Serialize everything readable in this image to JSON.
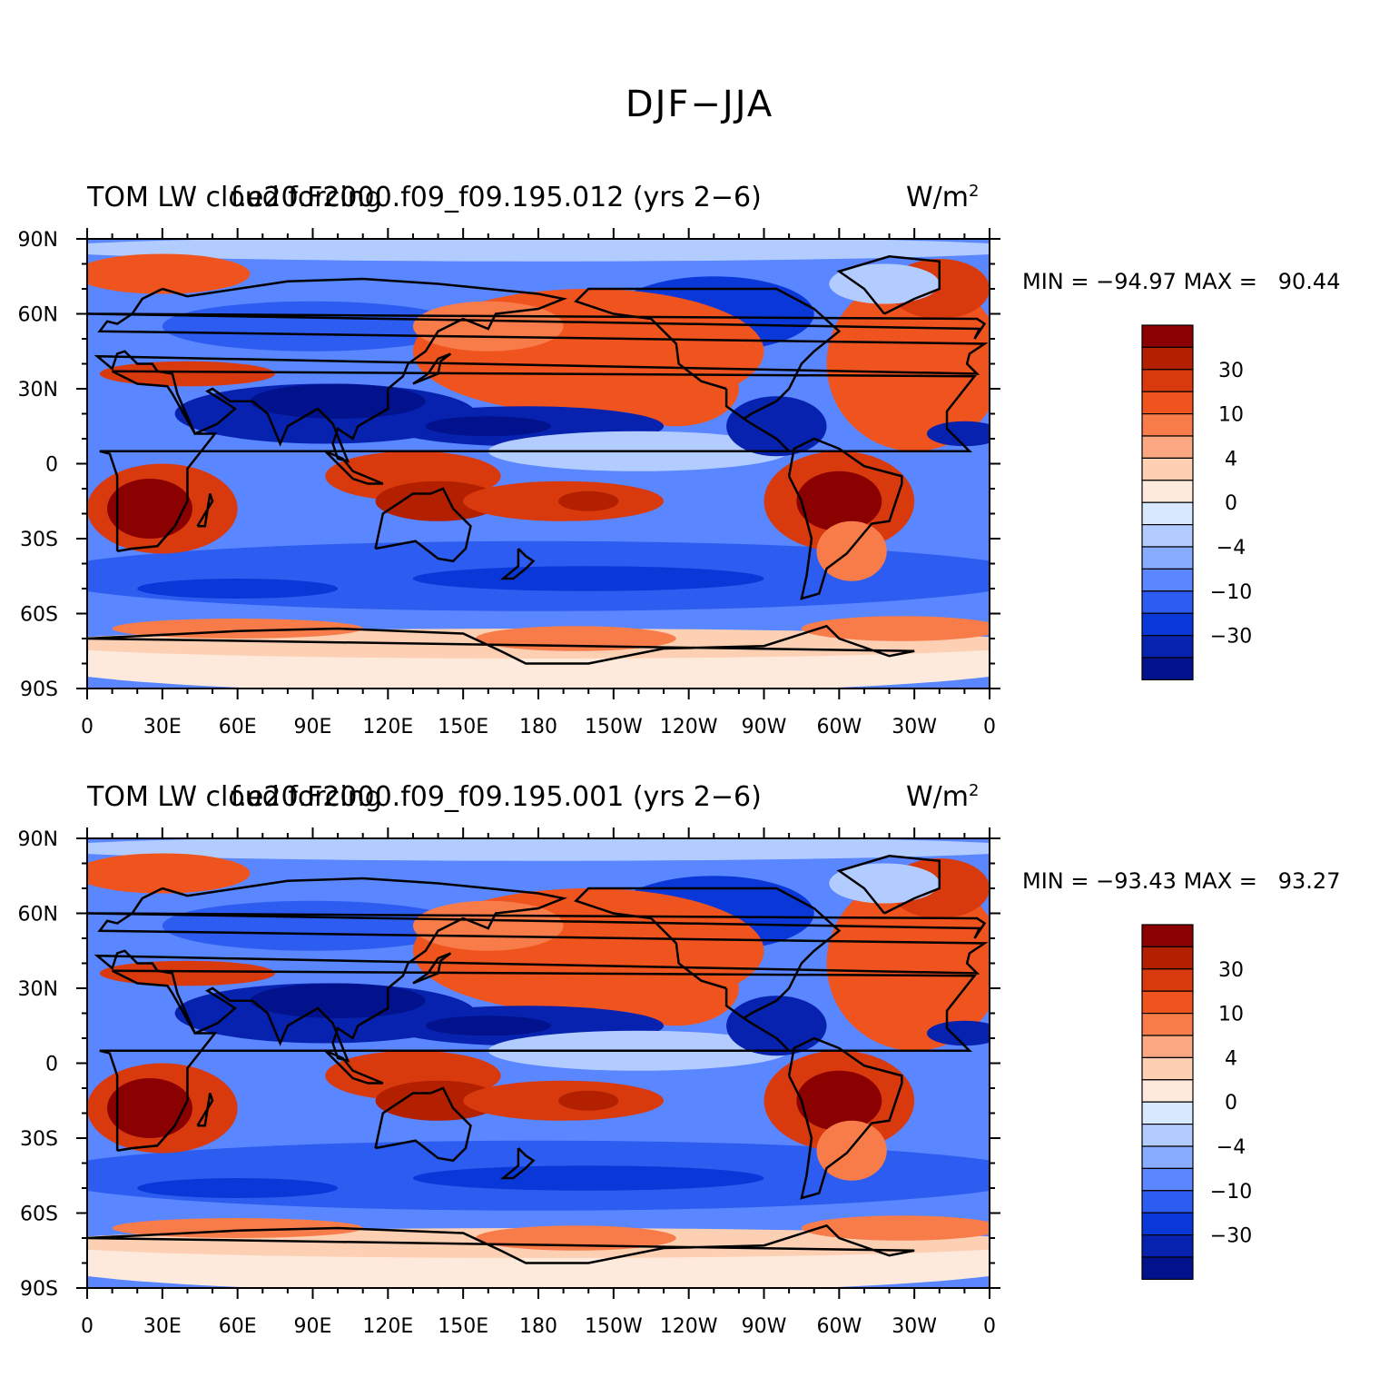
{
  "figure": {
    "title": "DJF−JJA"
  },
  "panels": [
    {
      "left_title": "TOM LW cloud forcing",
      "center_title": "f.e20.F2000.f09_f09.195.012 (yrs 2−6)",
      "units": "W/m",
      "units_sup": "2",
      "min_label": "MIN = −94.97",
      "max_label": "MAX =   90.44"
    },
    {
      "left_title": "TOM LW cloud forcing",
      "center_title": "f.e20.F2000.f09_f09.195.001 (yrs 2−6)",
      "units": "W/m",
      "units_sup": "2",
      "min_label": "MIN = −93.43",
      "max_label": "MAX =   93.27"
    }
  ],
  "axes": {
    "lat_ticks": [
      "90N",
      "60N",
      "30N",
      "0",
      "30S",
      "60S",
      "90S"
    ],
    "lon_ticks": [
      "0",
      "30E",
      "60E",
      "90E",
      "120E",
      "150E",
      "180",
      "150W",
      "120W",
      "90W",
      "60W",
      "30W",
      "0"
    ]
  },
  "colorbar": {
    "colors": [
      "#8b0000",
      "#b22000",
      "#d83a0e",
      "#f0541e",
      "#f87c4a",
      "#fba882",
      "#fdd0b4",
      "#feeadc",
      "#d7e8ff",
      "#b3ccff",
      "#88acff",
      "#5a86ff",
      "#2d5cf0",
      "#0a38d8",
      "#0822b0",
      "#02128c"
    ],
    "labels": [
      "30",
      "10",
      "4",
      "0",
      "−4",
      "−10",
      "−30"
    ]
  },
  "chart_data": {
    "type": "heatmap",
    "title": "DJF−JJA",
    "variable": "TOM LW cloud forcing",
    "units": "W/m2",
    "projection": "cylindrical equidistant",
    "lon_range": [
      0,
      360
    ],
    "lat_range": [
      -90,
      90
    ],
    "contour_levels": [
      -50,
      -40,
      -30,
      -20,
      -10,
      -6,
      -4,
      -2,
      0,
      2,
      4,
      6,
      10,
      20,
      30,
      40
    ],
    "panels": [
      {
        "case": "f.e20.F2000.f09_f09.195.012 (yrs 2−6)",
        "min": -94.97,
        "max": 90.44
      },
      {
        "case": "f.e20.F2000.f09_f09.195.001 (yrs 2−6)",
        "min": -93.43,
        "max": 93.27
      }
    ]
  }
}
